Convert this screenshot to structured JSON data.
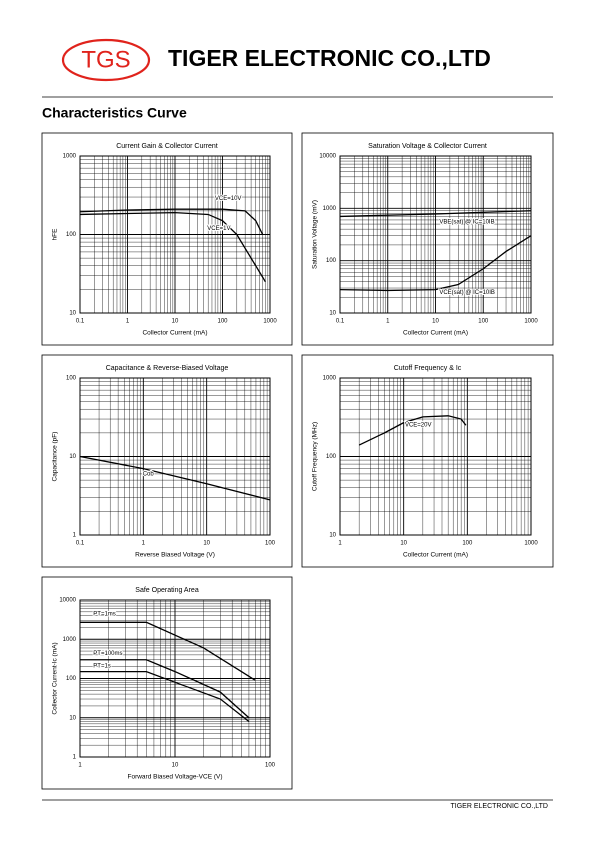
{
  "header": {
    "logo": "TGS",
    "company": "TIGER ELECTRONIC CO.,LTD"
  },
  "section_title": "Characteristics Curve",
  "footer": "TIGER ELECTRONIC CO.,LTD",
  "chart_data": [
    {
      "type": "line",
      "title": "Current Gain & Collector Current",
      "x_label": "Collector Current (mA)",
      "y_label": "hFE",
      "xscale": "log",
      "yscale": "log",
      "xlim": [
        0.1,
        1000
      ],
      "ylim": [
        10,
        1000
      ],
      "xticks": [
        0.1,
        1,
        10,
        100,
        1000
      ],
      "yticks": [
        10,
        100,
        1000
      ],
      "grid": true,
      "minor_grid": true,
      "series": [
        {
          "name": "VCE=10V",
          "color": "#000000",
          "x": [
            0.1,
            1,
            10,
            100,
            300,
            500,
            700
          ],
          "values": [
            195,
            205,
            210,
            210,
            200,
            150,
            100
          ]
        },
        {
          "name": "VCE=1V",
          "color": "#000000",
          "x": [
            0.1,
            1,
            10,
            50,
            100,
            200,
            400,
            800
          ],
          "values": [
            180,
            185,
            190,
            180,
            150,
            100,
            50,
            25
          ]
        }
      ]
    },
    {
      "type": "line",
      "title": "Saturation Voltage & Collector Current",
      "x_label": "Collector Current (mA)",
      "y_label": "Saturation Voltage (mV)",
      "xscale": "log",
      "yscale": "log",
      "xlim": [
        0.1,
        1000
      ],
      "ylim": [
        10,
        10000
      ],
      "xticks": [
        0.1,
        1,
        10,
        100,
        1000
      ],
      "yticks": [
        10,
        100,
        1000,
        10000
      ],
      "grid": true,
      "minor_grid": true,
      "series": [
        {
          "name": "VBE(sat) @ IC=10IB",
          "color": "#000000",
          "x": [
            0.1,
            1,
            10,
            100,
            1000
          ],
          "values": [
            700,
            740,
            780,
            840,
            900
          ]
        },
        {
          "name": "VCE(sat) @ IC=10IB",
          "color": "#000000",
          "x": [
            0.1,
            1,
            10,
            30,
            100,
            300,
            1000
          ],
          "values": [
            28,
            27,
            28,
            35,
            70,
            150,
            300
          ]
        }
      ]
    },
    {
      "type": "line",
      "title": "Capacitance & Reverse-Biased Voltage",
      "x_label": "Reverse Biased Voltage (V)",
      "y_label": "Capacitance (pF)",
      "xscale": "log",
      "yscale": "log",
      "xlim": [
        0.1,
        100
      ],
      "ylim": [
        1,
        100
      ],
      "xticks": [
        0.1,
        1,
        10,
        100
      ],
      "yticks": [
        1,
        10,
        100
      ],
      "grid": true,
      "minor_grid": true,
      "series": [
        {
          "name": "Cob",
          "color": "#000000",
          "x": [
            0.1,
            1,
            10,
            100
          ],
          "values": [
            10,
            7,
            4.5,
            2.8
          ]
        }
      ]
    },
    {
      "type": "line",
      "title": "Cutoff Frequency & Ic",
      "x_label": "Collector Current (mA)",
      "y_label": "Cutoff Frequency (MHz)",
      "xscale": "log",
      "yscale": "log",
      "xlim": [
        1,
        1000
      ],
      "ylim": [
        10,
        1000
      ],
      "xticks": [
        1,
        10,
        100,
        1000
      ],
      "yticks": [
        10,
        100,
        1000
      ],
      "grid": true,
      "minor_grid": true,
      "series": [
        {
          "name": "VCE=20V",
          "color": "#000000",
          "x": [
            2,
            5,
            10,
            20,
            50,
            80,
            95
          ],
          "values": [
            140,
            200,
            270,
            320,
            330,
            300,
            250
          ]
        }
      ]
    },
    {
      "type": "line",
      "title": "Safe Operating Area",
      "x_label": "Forward Biased Voltage-VCE (V)",
      "y_label": "Collector Current-Ic (mA)",
      "xscale": "log",
      "yscale": "log",
      "xlim": [
        1,
        100
      ],
      "ylim": [
        1,
        10000
      ],
      "xticks": [
        1,
        10,
        100
      ],
      "yticks": [
        1,
        10,
        100,
        1000,
        10000
      ],
      "grid": true,
      "minor_grid": true,
      "series": [
        {
          "name": "PT=1ms",
          "color": "#000000",
          "x": [
            1,
            5,
            20,
            50,
            70
          ],
          "values": [
            2700,
            2700,
            600,
            150,
            90
          ]
        },
        {
          "name": "PT=100ms",
          "color": "#000000",
          "x": [
            1,
            5,
            10,
            30,
            60
          ],
          "values": [
            300,
            300,
            150,
            45,
            10
          ]
        },
        {
          "name": "PT=1s",
          "color": "#000000",
          "x": [
            1,
            5,
            10,
            30,
            60
          ],
          "values": [
            150,
            150,
            80,
            30,
            8
          ]
        }
      ]
    }
  ]
}
